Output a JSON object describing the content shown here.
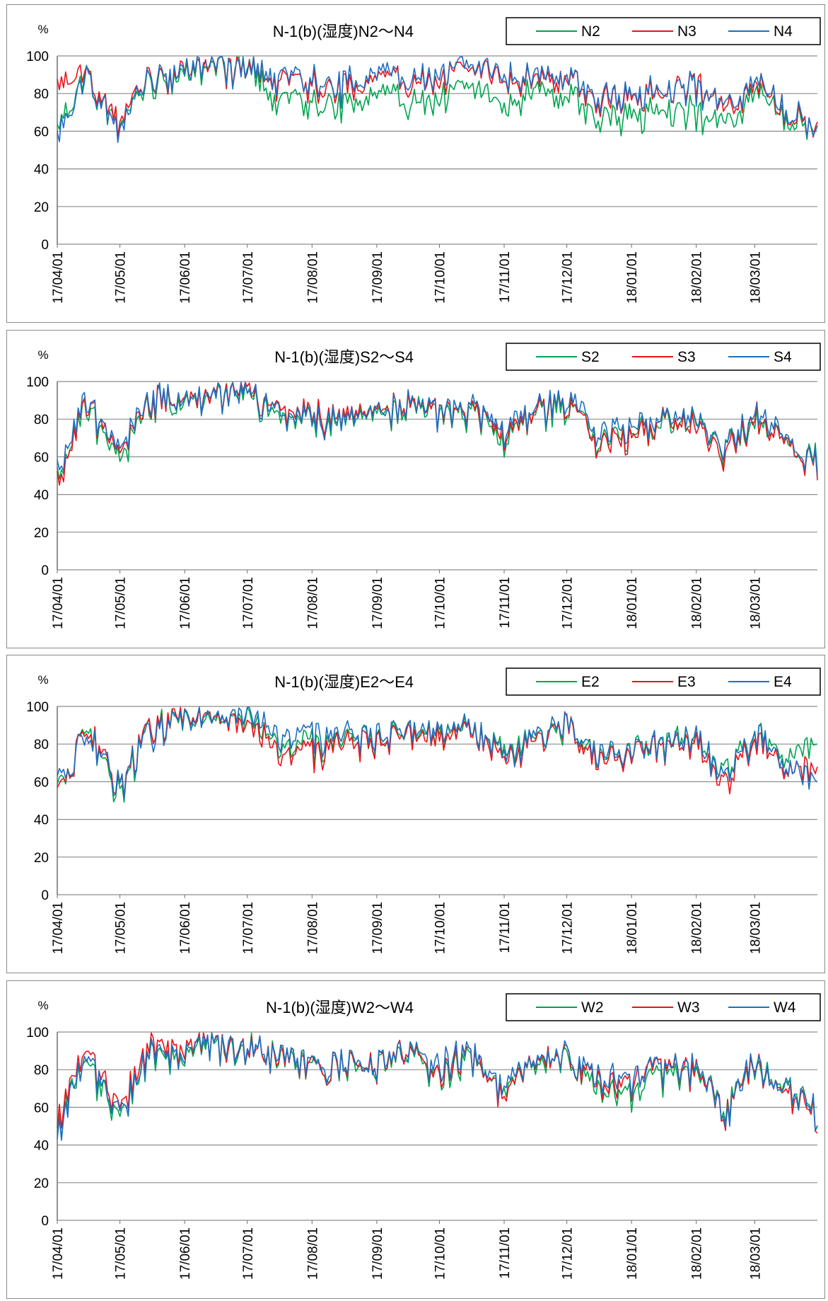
{
  "chart_data": [
    {
      "type": "line",
      "title": "N-1(b)(湿度)N2～N4",
      "ylabel": "%",
      "ylim": [
        0,
        100
      ],
      "yticks": [
        "0",
        "20",
        "40",
        "60",
        "80",
        "100"
      ],
      "x_ticks": [
        "17/04/01",
        "17/05/01",
        "17/06/01",
        "17/07/01",
        "17/08/01",
        "17/09/01",
        "17/10/01",
        "17/11/01",
        "17/12/01",
        "18/01/01",
        "18/02/01",
        "18/03/01"
      ],
      "x_range": [
        "17/04/01",
        "18/03/31"
      ],
      "grid": "horizontal",
      "legend_position": "top-right",
      "x": [
        "17/04/01",
        "17/04/15",
        "17/05/01",
        "17/05/15",
        "17/06/01",
        "17/06/15",
        "17/07/01",
        "17/07/15",
        "17/08/01",
        "17/08/15",
        "17/09/01",
        "17/09/15",
        "17/10/01",
        "17/10/15",
        "17/11/01",
        "17/11/15",
        "17/12/01",
        "17/12/15",
        "18/01/01",
        "18/01/15",
        "18/02/01",
        "18/02/15",
        "18/03/01",
        "18/03/15",
        "18/03/31"
      ],
      "series": [
        {
          "name": "N2",
          "color": "#00a54f",
          "values": [
            62,
            90,
            64,
            92,
            93,
            97,
            96,
            80,
            78,
            77,
            79,
            82,
            80,
            84,
            76,
            86,
            84,
            70,
            72,
            76,
            74,
            65,
            84,
            72,
            66
          ]
        },
        {
          "name": "N3",
          "color": "#e8141b",
          "values": [
            86,
            92,
            66,
            94,
            95,
            98,
            96,
            90,
            88,
            85,
            88,
            92,
            91,
            93,
            90,
            92,
            94,
            78,
            82,
            85,
            90,
            72,
            88,
            75,
            66
          ]
        },
        {
          "name": "N4",
          "color": "#1f6fc0",
          "values": [
            58,
            90,
            62,
            94,
            95,
            98,
            96,
            92,
            90,
            88,
            90,
            94,
            93,
            95,
            92,
            94,
            95,
            80,
            84,
            86,
            88,
            74,
            90,
            76,
            66
          ]
        }
      ]
    },
    {
      "type": "line",
      "title": "N-1(b)(湿度)S2～S4",
      "ylabel": "%",
      "ylim": [
        0,
        100
      ],
      "yticks": [
        "0",
        "20",
        "40",
        "60",
        "80",
        "100"
      ],
      "x_ticks": [
        "17/04/01",
        "17/05/01",
        "17/06/01",
        "17/07/01",
        "17/08/01",
        "17/09/01",
        "17/10/01",
        "17/11/01",
        "17/12/01",
        "18/01/01",
        "18/02/01",
        "18/03/01"
      ],
      "x_range": [
        "17/04/01",
        "18/03/31"
      ],
      "grid": "horizontal",
      "legend_position": "top-right",
      "x": [
        "17/04/01",
        "17/04/15",
        "17/05/01",
        "17/05/15",
        "17/06/01",
        "17/06/15",
        "17/07/01",
        "17/07/15",
        "17/08/01",
        "17/08/15",
        "17/09/01",
        "17/09/15",
        "17/10/01",
        "17/10/15",
        "17/11/01",
        "17/11/15",
        "17/12/01",
        "17/12/15",
        "18/01/01",
        "18/01/15",
        "18/02/01",
        "18/02/15",
        "18/03/01",
        "18/03/15",
        "18/03/31"
      ],
      "series": [
        {
          "name": "S2",
          "color": "#00a54f",
          "values": [
            52,
            90,
            58,
            92,
            90,
            96,
            94,
            84,
            82,
            84,
            83,
            92,
            84,
            88,
            72,
            86,
            90,
            72,
            76,
            80,
            82,
            66,
            84,
            70,
            62
          ]
        },
        {
          "name": "S3",
          "color": "#e8141b",
          "values": [
            50,
            92,
            62,
            93,
            92,
            97,
            96,
            88,
            85,
            86,
            84,
            93,
            85,
            90,
            74,
            87,
            92,
            70,
            74,
            82,
            80,
            62,
            86,
            70,
            60
          ]
        },
        {
          "name": "S4",
          "color": "#1f6fc0",
          "values": [
            56,
            92,
            64,
            94,
            92,
            97,
            95,
            86,
            84,
            85,
            84,
            93,
            86,
            90,
            78,
            88,
            93,
            76,
            80,
            84,
            84,
            66,
            88,
            72,
            60
          ]
        }
      ]
    },
    {
      "type": "line",
      "title": "N-1(b)(湿度)E2～E4",
      "ylabel": "%",
      "ylim": [
        0,
        100
      ],
      "yticks": [
        "0",
        "20",
        "40",
        "60",
        "80",
        "100"
      ],
      "x_ticks": [
        "17/04/01",
        "17/05/01",
        "17/06/01",
        "17/07/01",
        "17/08/01",
        "17/09/01",
        "17/10/01",
        "17/11/01",
        "17/12/01",
        "18/01/01",
        "18/02/01",
        "18/03/01"
      ],
      "x_range": [
        "17/04/01",
        "18/03/31"
      ],
      "grid": "horizontal",
      "legend_position": "top-right",
      "x": [
        "17/04/01",
        "17/04/15",
        "17/05/01",
        "17/05/15",
        "17/06/01",
        "17/06/15",
        "17/07/01",
        "17/07/15",
        "17/08/01",
        "17/08/15",
        "17/09/01",
        "17/09/15",
        "17/10/01",
        "17/10/15",
        "17/11/01",
        "17/11/15",
        "17/12/01",
        "17/12/15",
        "18/01/01",
        "18/01/15",
        "18/02/01",
        "18/02/15",
        "18/03/01",
        "18/03/15",
        "18/03/31"
      ],
      "series": [
        {
          "name": "E2",
          "color": "#00a54f",
          "values": [
            56,
            92,
            56,
            94,
            94,
            97,
            94,
            86,
            82,
            86,
            84,
            93,
            86,
            92,
            78,
            88,
            92,
            74,
            78,
            84,
            86,
            68,
            88,
            76,
            82
          ]
        },
        {
          "name": "E3",
          "color": "#e8141b",
          "values": [
            54,
            92,
            60,
            94,
            95,
            98,
            90,
            82,
            78,
            84,
            82,
            92,
            84,
            92,
            74,
            86,
            92,
            72,
            76,
            82,
            84,
            60,
            86,
            70,
            68
          ]
        },
        {
          "name": "E4",
          "color": "#1f6fc0",
          "values": [
            60,
            88,
            62,
            90,
            95,
            98,
            96,
            90,
            88,
            88,
            86,
            94,
            88,
            94,
            76,
            88,
            94,
            76,
            78,
            84,
            86,
            64,
            88,
            72,
            62
          ]
        }
      ]
    },
    {
      "type": "line",
      "title": "N-1(b)(湿度)W2～W4",
      "ylabel": "%",
      "ylim": [
        0,
        100
      ],
      "yticks": [
        "0",
        "20",
        "40",
        "60",
        "80",
        "100"
      ],
      "x_ticks": [
        "17/04/01",
        "17/05/01",
        "17/06/01",
        "17/07/01",
        "17/08/01",
        "17/09/01",
        "17/10/01",
        "17/11/01",
        "17/12/01",
        "18/01/01",
        "18/02/01",
        "18/03/01"
      ],
      "x_range": [
        "17/04/01",
        "18/03/31"
      ],
      "grid": "horizontal",
      "legend_position": "top-right",
      "x": [
        "17/04/01",
        "17/04/15",
        "17/05/01",
        "17/05/15",
        "17/06/01",
        "17/06/15",
        "17/07/01",
        "17/07/15",
        "17/08/01",
        "17/08/15",
        "17/09/01",
        "17/09/15",
        "17/10/01",
        "17/10/15",
        "17/11/01",
        "17/11/15",
        "17/12/01",
        "17/12/15",
        "18/01/01",
        "18/01/15",
        "18/02/01",
        "18/02/15",
        "18/03/01",
        "18/03/15",
        "18/03/31"
      ],
      "series": [
        {
          "name": "W2",
          "color": "#00a54f",
          "values": [
            54,
            88,
            58,
            90,
            90,
            96,
            96,
            88,
            84,
            86,
            84,
            92,
            80,
            90,
            72,
            84,
            92,
            72,
            70,
            80,
            82,
            62,
            86,
            74,
            62
          ]
        },
        {
          "name": "W3",
          "color": "#e8141b",
          "values": [
            56,
            94,
            62,
            96,
            94,
            97,
            96,
            88,
            85,
            87,
            85,
            93,
            82,
            92,
            70,
            86,
            92,
            76,
            76,
            84,
            84,
            60,
            88,
            70,
            60
          ]
        },
        {
          "name": "W4",
          "color": "#1f6fc0",
          "values": [
            50,
            90,
            60,
            92,
            92,
            97,
            96,
            89,
            86,
            87,
            85,
            93,
            86,
            92,
            74,
            86,
            93,
            78,
            78,
            84,
            85,
            60,
            88,
            72,
            62
          ]
        }
      ]
    }
  ]
}
